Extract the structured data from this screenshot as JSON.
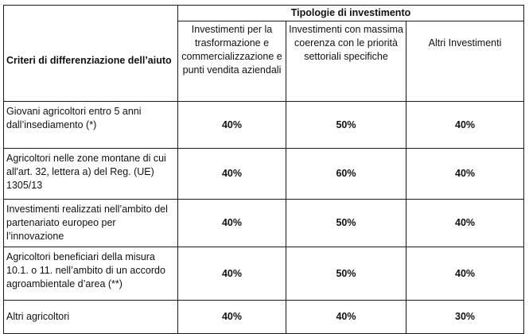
{
  "table": {
    "criteria_header": "Criteri di differenziazione dell’aiuto",
    "group_header": "Tipologie di investimento",
    "investment_types": [
      "Investimenti per la trasformazione e commercializzazione e punti vendita aziendali",
      "Investimenti con massima coerenza con le priorità settoriali specifiche",
      "Altri Investimenti"
    ],
    "rows": [
      {
        "criterion": "Giovani agricoltori entro 5 anni dall’insediamento (*)",
        "values": [
          "40%",
          "50%",
          "40%"
        ]
      },
      {
        "criterion": "Agricoltori nelle zone montane di cui all'art. 32, lettera a) del Reg. (UE) 1305/13",
        "values": [
          "40%",
          "60%",
          "40%"
        ]
      },
      {
        "criterion": "Investimenti realizzati nell’ambito del partenariato europeo per l’innovazione",
        "values": [
          "40%",
          "50%",
          "40%"
        ]
      },
      {
        "criterion": "Agricoltori beneficiari della misura 10.1. o 11. nell’ambito di un accordo agroambientale d’area (**)",
        "values": [
          "40%",
          "50%",
          "40%"
        ]
      },
      {
        "criterion": "Altri agricoltori",
        "values": [
          "40%",
          "40%",
          "30%"
        ]
      }
    ]
  }
}
